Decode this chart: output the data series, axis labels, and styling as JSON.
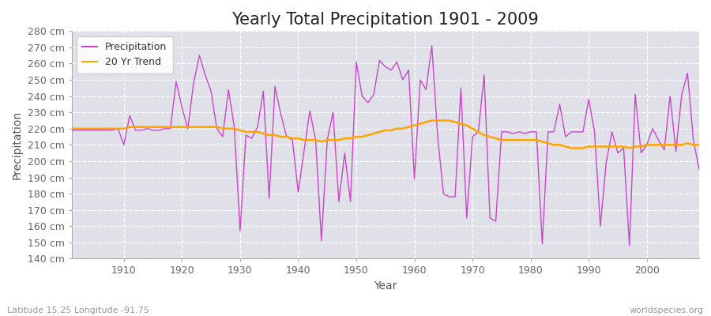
{
  "title": "Yearly Total Precipitation 1901 - 2009",
  "xlabel": "Year",
  "ylabel": "Precipitation",
  "footnote_left": "Latitude 15.25 Longitude -91.75",
  "footnote_right": "worldspecies.org",
  "years": [
    1901,
    1902,
    1903,
    1904,
    1905,
    1906,
    1907,
    1908,
    1909,
    1910,
    1911,
    1912,
    1913,
    1914,
    1915,
    1916,
    1917,
    1918,
    1919,
    1920,
    1921,
    1922,
    1923,
    1924,
    1925,
    1926,
    1927,
    1928,
    1929,
    1930,
    1931,
    1932,
    1933,
    1934,
    1935,
    1936,
    1937,
    1938,
    1939,
    1940,
    1941,
    1942,
    1943,
    1944,
    1945,
    1946,
    1947,
    1948,
    1949,
    1950,
    1951,
    1952,
    1953,
    1954,
    1955,
    1956,
    1957,
    1958,
    1959,
    1960,
    1961,
    1962,
    1963,
    1964,
    1965,
    1966,
    1967,
    1968,
    1969,
    1970,
    1971,
    1972,
    1973,
    1974,
    1975,
    1976,
    1977,
    1978,
    1979,
    1980,
    1981,
    1982,
    1983,
    1984,
    1985,
    1986,
    1987,
    1988,
    1989,
    1990,
    1991,
    1992,
    1993,
    1994,
    1995,
    1996,
    1997,
    1998,
    1999,
    2000,
    2001,
    2002,
    2003,
    2004,
    2005,
    2006,
    2007,
    2008,
    2009
  ],
  "precip": [
    219,
    219,
    219,
    219,
    219,
    219,
    219,
    219,
    220,
    210,
    228,
    219,
    219,
    220,
    219,
    219,
    220,
    220,
    249,
    233,
    220,
    248,
    265,
    253,
    243,
    220,
    215,
    244,
    221,
    157,
    216,
    214,
    221,
    243,
    177,
    246,
    229,
    215,
    213,
    181,
    206,
    231,
    213,
    151,
    213,
    230,
    175,
    205,
    175,
    261,
    240,
    236,
    241,
    262,
    258,
    256,
    261,
    250,
    256,
    189,
    250,
    244,
    271,
    215,
    180,
    178,
    178,
    245,
    165,
    215,
    218,
    253,
    165,
    163,
    218,
    218,
    217,
    218,
    217,
    218,
    218,
    149,
    218,
    218,
    235,
    215,
    218,
    218,
    218,
    238,
    218,
    160,
    199,
    218,
    205,
    208,
    148,
    241,
    205,
    210,
    220,
    213,
    207,
    240,
    206,
    241,
    254,
    213,
    195
  ],
  "trend": [
    220,
    220,
    220,
    220,
    220,
    220,
    220,
    220,
    220,
    220,
    221,
    221,
    221,
    221,
    221,
    221,
    221,
    221,
    221,
    221,
    221,
    221,
    221,
    221,
    221,
    221,
    220,
    220,
    220,
    219,
    218,
    218,
    218,
    217,
    216,
    216,
    215,
    215,
    214,
    214,
    213,
    213,
    213,
    212,
    213,
    213,
    213,
    214,
    214,
    215,
    215,
    216,
    217,
    218,
    219,
    219,
    220,
    220,
    221,
    222,
    223,
    224,
    225,
    225,
    225,
    225,
    224,
    223,
    222,
    220,
    218,
    216,
    215,
    214,
    213,
    213,
    213,
    213,
    213,
    213,
    213,
    212,
    211,
    210,
    210,
    209,
    208,
    208,
    208,
    209,
    209,
    209,
    209,
    209,
    209,
    209,
    208,
    209,
    209,
    210,
    210,
    210,
    210,
    210,
    210,
    210,
    211,
    210,
    210
  ],
  "precip_color": "#CC44CC",
  "trend_color": "#FFA500",
  "bg_color": "#FFFFFF",
  "plot_bg_color": "#E0E0E8",
  "grid_color": "#FFFFFF",
  "ylim": [
    140,
    280
  ],
  "yticks": [
    140,
    150,
    160,
    170,
    180,
    190,
    200,
    210,
    220,
    230,
    240,
    250,
    260,
    270,
    280
  ],
  "xticks": [
    1910,
    1920,
    1930,
    1940,
    1950,
    1960,
    1970,
    1980,
    1990,
    2000
  ],
  "title_fontsize": 15,
  "axis_label_fontsize": 10,
  "tick_fontsize": 9,
  "legend_fontsize": 9
}
